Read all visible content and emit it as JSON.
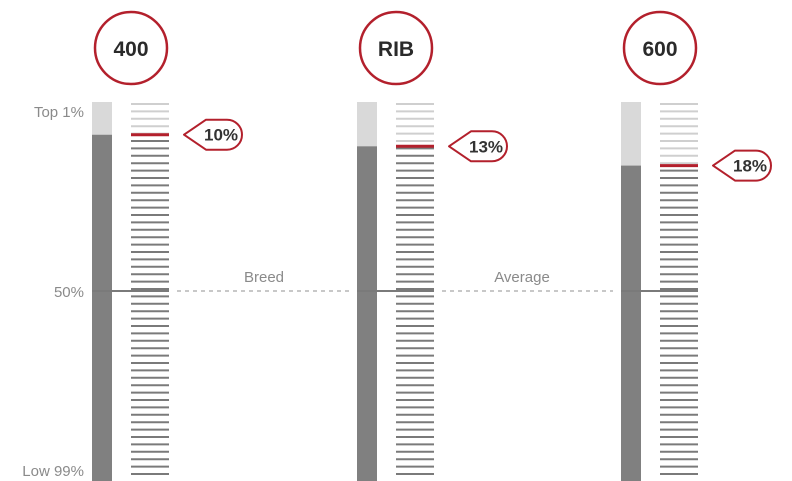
{
  "chart_data": {
    "type": "bar",
    "y_axis_labels": {
      "top": "Top 1%",
      "middle": "50%",
      "bottom": "Low 99%"
    },
    "scale": {
      "top_percentile": 1,
      "middle_percentile": 50,
      "bottom_percentile": 99,
      "direction": "top-is-best"
    },
    "reference_line": {
      "words": [
        "Breed",
        "Average"
      ],
      "percentile": 50
    },
    "series": [
      {
        "label": "400",
        "percentile": 10,
        "percentile_label": "10%"
      },
      {
        "label": "RIB",
        "percentile": 13,
        "percentile_label": "13%"
      },
      {
        "label": "600",
        "percentile": 18,
        "percentile_label": "18%"
      }
    ],
    "colors": {
      "bar_fill": "#808080",
      "bar_remainder": "#d9d9d9",
      "tick_dark": "#7a7a7a",
      "tick_light": "#cfcfcf",
      "marker": "#b3202c",
      "label_text": "#8a8a8a",
      "reference_line": "#c8c8c8"
    }
  }
}
